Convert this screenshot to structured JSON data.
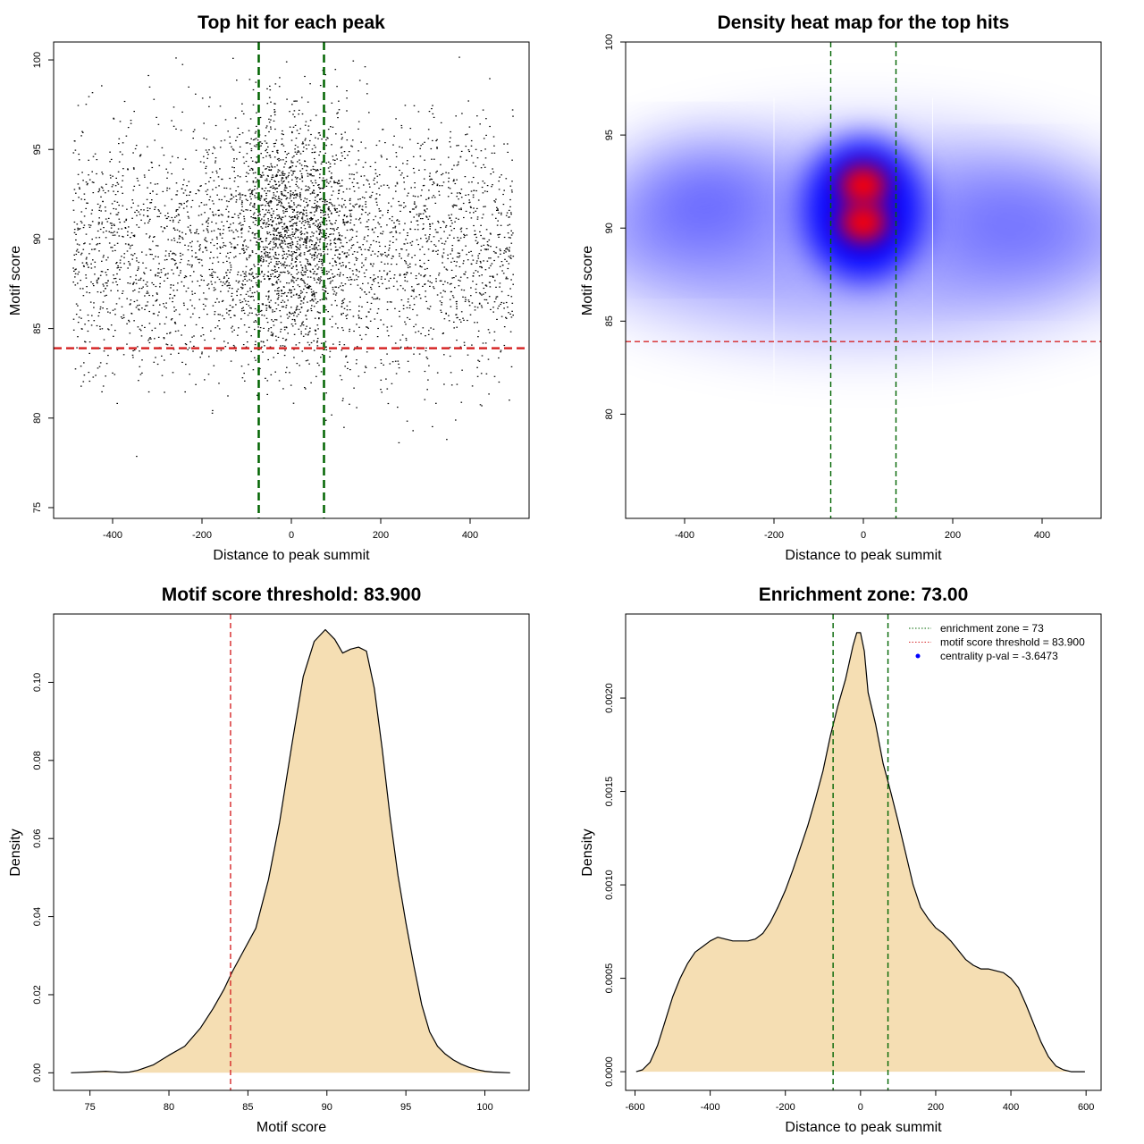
{
  "chart_data": [
    {
      "id": "p1",
      "type": "scatter",
      "title": "Top hit for each peak",
      "xlabel": "Distance to peak summit",
      "ylabel": "Motif score",
      "xlim": [
        -532,
        532
      ],
      "ylim": [
        74.4,
        101.0
      ],
      "xticks": [
        "-400",
        "-200",
        "0",
        "200",
        "400"
      ],
      "xtick_values": [
        -400,
        -200,
        0,
        200,
        400
      ],
      "yticks": [
        "75",
        "80",
        "85",
        "90",
        "95",
        "100"
      ],
      "ytick_values": [
        75,
        80,
        85,
        90,
        95,
        100
      ],
      "points_summary": {
        "n_points": 4500,
        "x_range": [
          -490,
          495
        ],
        "background_mean_y": 89.6,
        "background_sd_y": 3.6,
        "central_fraction": 0.3,
        "central_sd_x": 70,
        "central_mean_y": 90.7,
        "central_sd_y": 3.3
      },
      "vlines": [
        -73,
        73
      ],
      "hline": 83.9,
      "colors": {
        "points": "#000000",
        "vline": "#006400",
        "hline": "#d62728"
      }
    },
    {
      "id": "p2",
      "type": "heatmap",
      "title": "Density heat map for the top hits",
      "xlabel": "Distance to peak summit",
      "ylabel": "Motif score",
      "xlim": [
        -532,
        532
      ],
      "ylim": [
        74.4,
        100.0
      ],
      "xticks": [
        "-400",
        "-200",
        "0",
        "200",
        "400"
      ],
      "xtick_values": [
        -400,
        -200,
        0,
        200,
        400
      ],
      "yticks": [
        "80",
        "85",
        "90",
        "95",
        "100"
      ],
      "ytick_values": [
        80,
        85,
        90,
        95,
        100
      ],
      "density_peaks": [
        {
          "x": 0,
          "y": 92.3,
          "level": "high"
        },
        {
          "x": 0,
          "y": 90.3,
          "level": "high"
        }
      ],
      "vlines": [
        -73,
        73
      ],
      "hline": 83.9,
      "colors": {
        "low": "#ffffff",
        "mid": "#0000ff",
        "high": "#ff0000",
        "vline": "#006400",
        "hline": "#d62728"
      }
    },
    {
      "id": "p3",
      "type": "area",
      "title": "Motif score threshold: 83.900",
      "xlabel": "Motif score",
      "ylabel": "Density",
      "xlim": [
        72.7,
        102.8
      ],
      "ylim": [
        -0.0045,
        0.1175
      ],
      "xticks": [
        "75",
        "80",
        "85",
        "90",
        "95",
        "100"
      ],
      "xtick_values": [
        75,
        80,
        85,
        90,
        95,
        100
      ],
      "yticks": [
        "0.00",
        "0.02",
        "0.04",
        "0.06",
        "0.08",
        "0.10"
      ],
      "ytick_values": [
        0,
        0.02,
        0.04,
        0.06,
        0.08,
        0.1
      ],
      "x": [
        73.8,
        75.0,
        76.0,
        77.0,
        77.5,
        78.0,
        79.0,
        80.0,
        81.0,
        82.0,
        82.8,
        83.5,
        84.0,
        84.8,
        85.5,
        86.3,
        87.0,
        87.8,
        88.5,
        89.2,
        89.9,
        90.5,
        91.0,
        91.5,
        92.0,
        92.5,
        93.0,
        93.5,
        94.0,
        94.5,
        95.0,
        95.5,
        96.0,
        96.5,
        97.0,
        97.5,
        98.0,
        98.5,
        99.0,
        99.5,
        100.0,
        100.5,
        101.0,
        101.6
      ],
      "y": [
        0.0,
        0.0002,
        0.0004,
        0.0001,
        0.0002,
        0.0006,
        0.002,
        0.0045,
        0.0068,
        0.0115,
        0.0165,
        0.0215,
        0.0258,
        0.0318,
        0.037,
        0.0495,
        0.064,
        0.0845,
        0.1015,
        0.1105,
        0.1135,
        0.111,
        0.1075,
        0.1085,
        0.109,
        0.108,
        0.0985,
        0.083,
        0.0655,
        0.0505,
        0.0385,
        0.0275,
        0.0175,
        0.0105,
        0.0068,
        0.0048,
        0.0033,
        0.0022,
        0.0014,
        0.0008,
        0.0004,
        0.0002,
        0.0001,
        0.0
      ],
      "vline": 83.9,
      "colors": {
        "fill": "#f5deb3",
        "line": "#000000",
        "vline": "#d62728"
      }
    },
    {
      "id": "p4",
      "type": "area",
      "title": "Enrichment zone: 73.00",
      "xlabel": "Distance to peak summit",
      "ylabel": "Density",
      "xlim": [
        -625,
        640
      ],
      "ylim": [
        -0.0001,
        0.00245
      ],
      "xticks": [
        "-600",
        "-400",
        "-200",
        "0",
        "200",
        "400",
        "600"
      ],
      "xtick_values": [
        -600,
        -400,
        -200,
        0,
        200,
        400,
        600
      ],
      "yticks": [
        "0.0000",
        "0.0005",
        "0.0010",
        "0.0015",
        "0.0020"
      ],
      "ytick_values": [
        0,
        0.0005,
        0.001,
        0.0015,
        0.002
      ],
      "x": [
        -597,
        -580,
        -560,
        -540,
        -520,
        -500,
        -480,
        -460,
        -440,
        -420,
        -400,
        -380,
        -360,
        -340,
        -320,
        -300,
        -280,
        -260,
        -240,
        -220,
        -200,
        -180,
        -160,
        -140,
        -120,
        -100,
        -80,
        -60,
        -40,
        -20,
        -10,
        0,
        10,
        20,
        40,
        60,
        80,
        100,
        120,
        140,
        160,
        180,
        200,
        220,
        240,
        260,
        280,
        300,
        320,
        340,
        360,
        380,
        400,
        420,
        440,
        460,
        480,
        500,
        520,
        540,
        560,
        580,
        597
      ],
      "y": [
        0.0,
        1e-05,
        5e-05,
        0.00014,
        0.00027,
        0.0004,
        0.0005,
        0.00058,
        0.00064,
        0.00067,
        0.0007,
        0.00072,
        0.00071,
        0.0007,
        0.0007,
        0.0007,
        0.00071,
        0.00074,
        0.0008,
        0.00088,
        0.00097,
        0.00108,
        0.0012,
        0.00132,
        0.00146,
        0.00161,
        0.0018,
        0.00196,
        0.0021,
        0.00228,
        0.00235,
        0.00235,
        0.00225,
        0.00203,
        0.00186,
        0.00165,
        0.0015,
        0.00134,
        0.00117,
        0.001,
        0.00088,
        0.00082,
        0.00077,
        0.00074,
        0.0007,
        0.00065,
        0.0006,
        0.00057,
        0.00055,
        0.00055,
        0.00054,
        0.00053,
        0.0005,
        0.00045,
        0.00036,
        0.00026,
        0.00016,
        8e-05,
        3e-05,
        1e-05,
        0.0,
        0.0,
        0.0
      ],
      "vlines": [
        -73,
        73
      ],
      "legend": {
        "position": "top-right",
        "entries": [
          {
            "label": "enrichment zone = 73",
            "style": "dotted",
            "color": "#006400"
          },
          {
            "label": "motif score threshold = 83.900",
            "style": "dotted",
            "color": "#d62728"
          },
          {
            "label": "centrality p-val = -3.6473",
            "style": "point",
            "color": "#0000ff"
          }
        ]
      },
      "colors": {
        "fill": "#f5deb3",
        "line": "#000000",
        "vline": "#006400"
      }
    }
  ]
}
